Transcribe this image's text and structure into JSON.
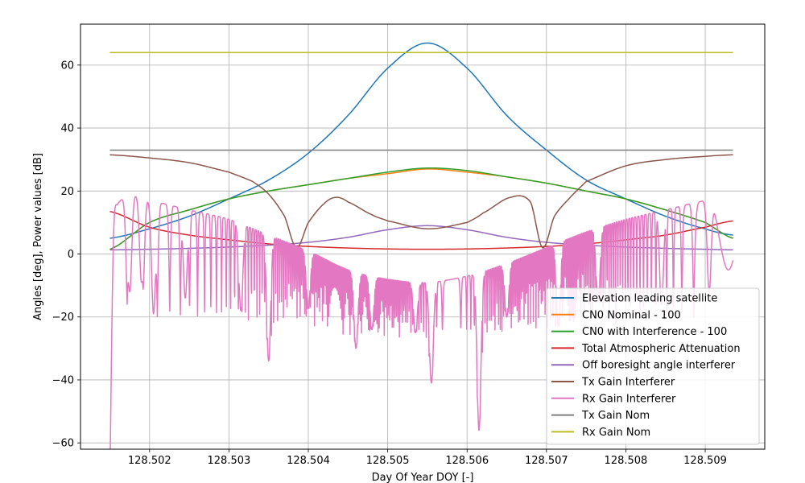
{
  "chart_data": {
    "type": "line",
    "title": "",
    "xlabel": "Day Of Year DOY [-]",
    "ylabel": "Angles [deg], Power values [dB]",
    "xlim": [
      128.50113,
      128.50975
    ],
    "ylim": [
      -62,
      73
    ],
    "x_ticks": [
      128.502,
      128.503,
      128.504,
      128.505,
      128.506,
      128.507,
      128.508,
      128.509
    ],
    "x_tick_labels": [
      "128.502",
      "128.503",
      "128.504",
      "128.505",
      "128.506",
      "128.507",
      "128.508",
      "128.509"
    ],
    "y_ticks": [
      -60,
      -40,
      -20,
      0,
      20,
      40,
      60
    ],
    "y_tick_labels": [
      "−60",
      "−40",
      "−20",
      "0",
      "20",
      "40",
      "60"
    ],
    "grid": true,
    "legend_position": "lower-right",
    "x_range": [
      128.5015,
      128.50935
    ],
    "series": [
      {
        "name": "Elevation leading satellite",
        "color": "#1f77b4",
        "x": [
          128.5015,
          128.502,
          128.5025,
          128.503,
          128.5035,
          128.504,
          128.5045,
          128.505,
          128.5055,
          128.506,
          128.5065,
          128.507,
          128.5075,
          128.508,
          128.5085,
          128.509,
          128.50935
        ],
        "y": [
          5,
          8,
          12,
          17.5,
          23.5,
          32,
          44,
          59,
          67,
          59,
          44,
          33,
          23.5,
          17.5,
          12,
          8,
          6
        ]
      },
      {
        "name": "CN0 Nominal - 100",
        "color": "#ff7f0e",
        "x": [
          128.5015,
          128.502,
          128.5025,
          128.503,
          128.5035,
          128.504,
          128.5045,
          128.505,
          128.5055,
          128.506,
          128.5065,
          128.507,
          128.5075,
          128.508,
          128.5085,
          128.509,
          128.50935
        ],
        "y": [
          1.5,
          10,
          14,
          17.5,
          20,
          22,
          24,
          25.5,
          27,
          26,
          24.5,
          22.5,
          20,
          17.5,
          14,
          10,
          5
        ]
      },
      {
        "name": "CN0 with Interference - 100",
        "color": "#2ca02c",
        "x": [
          128.5015,
          128.502,
          128.5025,
          128.503,
          128.5035,
          128.504,
          128.5045,
          128.505,
          128.5055,
          128.506,
          128.5065,
          128.507,
          128.5075,
          128.508,
          128.5085,
          128.509,
          128.50935
        ],
        "y": [
          1.5,
          10,
          14,
          17.5,
          20,
          22,
          24,
          26,
          27.3,
          26.5,
          24.5,
          22.5,
          20,
          17.5,
          14,
          10,
          5
        ]
      },
      {
        "name": "Total Atmospheric Attenuation",
        "color": "#d62728",
        "x": [
          128.5015,
          128.502,
          128.5025,
          128.503,
          128.5035,
          128.504,
          128.5045,
          128.505,
          128.5055,
          128.506,
          128.5065,
          128.507,
          128.5075,
          128.508,
          128.5085,
          128.509,
          128.50935
        ],
        "y": [
          13.5,
          8.5,
          6,
          4.5,
          3.2,
          2.4,
          1.9,
          1.6,
          1.5,
          1.6,
          1.9,
          2.4,
          3.2,
          4.5,
          6,
          8.5,
          10.5
        ]
      },
      {
        "name": "Off boresight angle interferer",
        "color": "#9467bd",
        "x": [
          128.5015,
          128.502,
          128.5025,
          128.503,
          128.5035,
          128.504,
          128.5045,
          128.505,
          128.5055,
          128.506,
          128.5065,
          128.507,
          128.5075,
          128.508,
          128.5085,
          128.509,
          128.50935
        ],
        "y": [
          1.3,
          1.5,
          1.8,
          2.2,
          2.8,
          3.7,
          5.3,
          7.7,
          9,
          7.7,
          5.3,
          3.7,
          2.8,
          2.2,
          1.8,
          1.5,
          1.3
        ]
      },
      {
        "name": "Tx Gain Interferer",
        "color": "#8c564b",
        "x": [
          128.5015,
          128.502,
          128.5025,
          128.503,
          128.5033,
          128.5035,
          128.5037,
          128.50385,
          128.504,
          128.5042,
          128.50435,
          128.5045,
          128.5048,
          128.505,
          128.5055,
          128.506,
          128.5062,
          128.50655,
          128.5068,
          128.50695,
          128.5071,
          128.5073,
          128.5075,
          128.508,
          128.5085,
          128.509,
          128.50935
        ],
        "y": [
          31.5,
          30.5,
          29,
          26,
          23,
          19,
          12,
          2,
          10,
          16,
          18,
          16.5,
          12.5,
          10.5,
          8,
          10,
          13,
          18,
          16.5,
          2,
          12,
          18,
          23,
          28,
          30,
          31,
          31.5
        ]
      },
      {
        "name": "Rx Gain Interferer",
        "color": "#e377c2",
        "x": [
          128.5015,
          128.50155,
          128.5016,
          128.50175,
          128.502,
          128.5025,
          128.503,
          128.5035,
          128.504,
          128.5045,
          128.505,
          128.5055,
          128.506,
          128.5065,
          128.507,
          128.5075,
          128.508,
          128.5085,
          128.509,
          128.5092,
          128.50935
        ],
        "y": [
          -35,
          10,
          16,
          19,
          17,
          14,
          11,
          6,
          1,
          -5,
          -8,
          -9,
          -7,
          -3,
          2,
          7,
          11,
          14,
          17,
          19,
          10
        ],
        "deep_nulls_x": [
          128.50175,
          128.5019,
          128.50205,
          128.50245,
          128.50315,
          128.5035,
          128.504,
          128.5046,
          128.5048,
          128.50535,
          128.50555,
          128.50615,
          128.5065,
          128.50715,
          128.50765,
          128.50845,
          128.50905
        ],
        "deep_nulls_y": [
          -12,
          -9,
          -19,
          -14,
          -18,
          -34,
          -17,
          -30,
          -24,
          -25,
          -41,
          -56,
          -20,
          -23,
          -15,
          -16,
          -12
        ]
      },
      {
        "name": "Tx Gain Nom",
        "color": "#7f7f7f",
        "x": [
          128.5015,
          128.50935
        ],
        "y": [
          33,
          33
        ]
      },
      {
        "name": "Rx Gain Nom",
        "color": "#bcbd22",
        "x": [
          128.5015,
          128.50935
        ],
        "y": [
          64,
          64
        ]
      }
    ]
  }
}
